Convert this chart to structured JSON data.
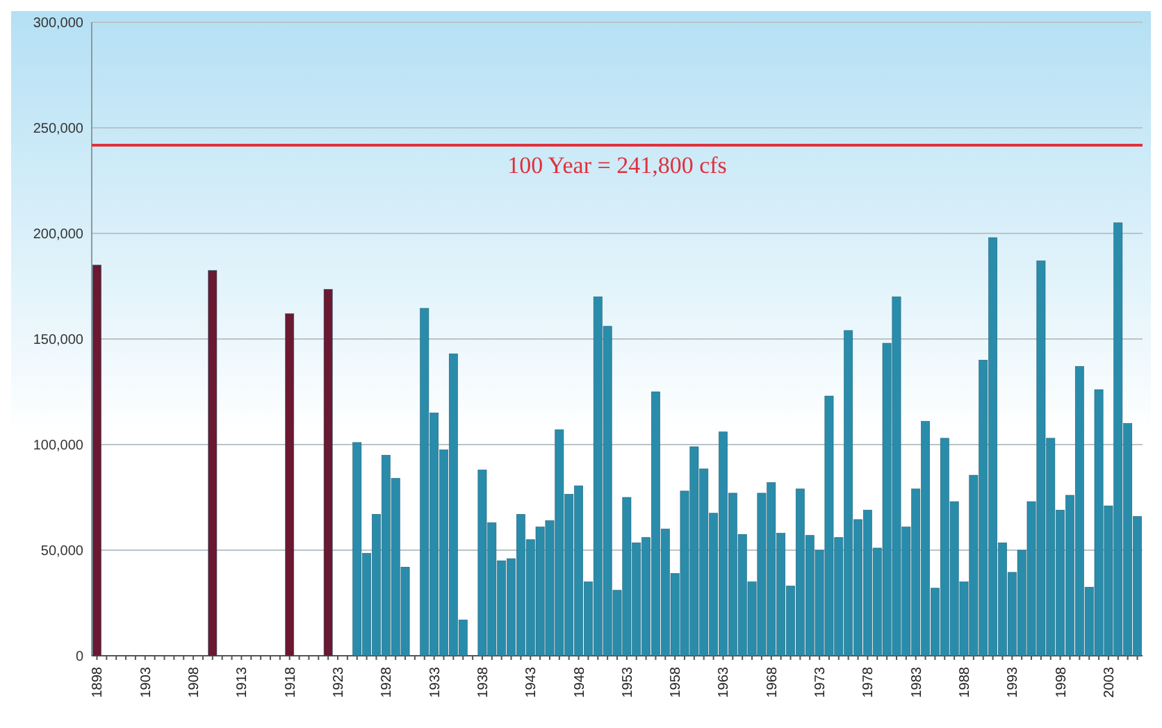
{
  "chart_data": {
    "type": "bar",
    "grid": "y",
    "categories": [
      "1898",
      null,
      null,
      null,
      null,
      "1903",
      null,
      null,
      null,
      null,
      "1908",
      null,
      null,
      null,
      null,
      "1913",
      null,
      null,
      null,
      null,
      "1918",
      null,
      null,
      null,
      null,
      "1923",
      null,
      null,
      null,
      null,
      "1928",
      null,
      null,
      null,
      null,
      "1933",
      null,
      null,
      null,
      null,
      "1938",
      null,
      null,
      null,
      null,
      "1943",
      null,
      null,
      null,
      null,
      "1948",
      null,
      null,
      null,
      null,
      "1953",
      null,
      null,
      null,
      null,
      "1958",
      null,
      null,
      null,
      null,
      "1963",
      null,
      null,
      null,
      null,
      "1968",
      null,
      null,
      null,
      null,
      "1973",
      null,
      null,
      null,
      null,
      "1978",
      null,
      null,
      null,
      null,
      "1983",
      null,
      null,
      null,
      null,
      "1988",
      null,
      null,
      null,
      null,
      "1993",
      null,
      null,
      null,
      null,
      "1998",
      null,
      null,
      null,
      null,
      "2003",
      null,
      null,
      null
    ],
    "series": [
      {
        "color": "#6b1830",
        "values": [
          185000,
          null,
          null,
          null,
          null,
          null,
          null,
          null,
          null,
          null,
          null,
          null,
          182500,
          null,
          null,
          null,
          null,
          null,
          null,
          null,
          162000,
          null,
          null,
          null,
          173500,
          null,
          null,
          null,
          null,
          null,
          null,
          null,
          null,
          null,
          null,
          null,
          null,
          null,
          null,
          null,
          null,
          null,
          null,
          null,
          null,
          null,
          null,
          null,
          null,
          null,
          null,
          null,
          null,
          null,
          null,
          null,
          null,
          null,
          null,
          null,
          null,
          null,
          null,
          null,
          null,
          null,
          null,
          null,
          null,
          null,
          null,
          null,
          null,
          null,
          null,
          null,
          null,
          null,
          null,
          null,
          null,
          null,
          null,
          null,
          null,
          null,
          null,
          null,
          null,
          null,
          null,
          null,
          null,
          null,
          null,
          null,
          null,
          null,
          null,
          null,
          null,
          null,
          null,
          null,
          null,
          null,
          null,
          null,
          null
        ]
      },
      {
        "color": "#2a8cab",
        "values": [
          null,
          null,
          null,
          null,
          null,
          null,
          null,
          null,
          null,
          null,
          null,
          null,
          null,
          null,
          null,
          null,
          null,
          null,
          null,
          null,
          null,
          null,
          null,
          null,
          null,
          null,
          null,
          101000,
          48500,
          67000,
          95000,
          84000,
          42000,
          null,
          164500,
          115000,
          97500,
          143000,
          17000,
          null,
          88000,
          63000,
          45000,
          46000,
          67000,
          55000,
          61000,
          64000,
          107000,
          76500,
          80500,
          35000,
          170000,
          156000,
          31000,
          75000,
          53500,
          56000,
          125000,
          60000,
          39000,
          78000,
          99000,
          88500,
          67500,
          106000,
          77000,
          57500,
          35000,
          77000,
          82000,
          58000,
          33000,
          79000,
          57000,
          50000,
          123000,
          56000,
          154000,
          64500,
          69000,
          51000,
          148000,
          170000,
          61000,
          79000,
          111000,
          32000,
          103000,
          73000,
          35000,
          85500,
          140000,
          198000,
          53500,
          39500,
          50000,
          73000,
          187000,
          103000,
          69000,
          76000,
          137000,
          32500,
          126000,
          71000,
          205000,
          110000,
          66000
        ]
      }
    ],
    "ylim": [
      0,
      300000
    ],
    "yticks": [
      {
        "value": 0,
        "label": "0"
      },
      {
        "value": 50000,
        "label": "50,000"
      },
      {
        "value": 100000,
        "label": "100,000"
      },
      {
        "value": 150000,
        "label": "150,000"
      },
      {
        "value": 200000,
        "label": "200,000"
      },
      {
        "value": 250000,
        "label": "250,000"
      },
      {
        "value": 300000,
        "label": "300,000"
      }
    ],
    "ref_lines": [
      {
        "axis": "y",
        "value": 241800,
        "label": "100 Year = 241,800 cfs",
        "color": "#e0303a"
      }
    ]
  }
}
